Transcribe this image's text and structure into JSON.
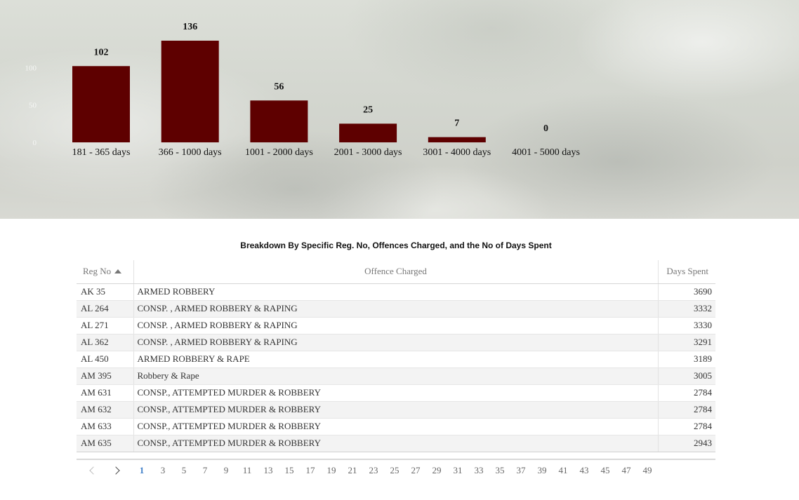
{
  "chart_data": {
    "type": "bar",
    "categories": [
      "181 - 365 days",
      "366 - 1000 days",
      "1001 - 2000 days",
      "2001 - 3000 days",
      "3001 - 4000 days",
      "4001 - 5000 days"
    ],
    "values": [
      102,
      136,
      56,
      25,
      7,
      0
    ],
    "data_labels": [
      "102",
      "136",
      "56",
      "25",
      "7",
      "0"
    ],
    "ylim": [
      0,
      136
    ],
    "y_ticks": [
      "0",
      "50",
      "100"
    ],
    "bar_color": "#5e0000",
    "grid": false,
    "legend": false
  },
  "table": {
    "title": "Breakdown By Specific Reg. No, Offences Charged, and the No of Days Spent",
    "headers": {
      "reg_no": "Reg No",
      "offence": "Offence Charged",
      "days": "Days Spent"
    },
    "sort": "Reg No ascending",
    "rows": [
      [
        "AK 35",
        "ARMED ROBBERY",
        "3690"
      ],
      [
        "AL 264",
        "CONSP. , ARMED ROBBERY & RAPING",
        "3332"
      ],
      [
        "AL 271",
        "CONSP. , ARMED ROBBERY & RAPING",
        "3330"
      ],
      [
        "AL 362",
        "CONSP. , ARMED ROBBERY & RAPING",
        "3291"
      ],
      [
        "AL 450",
        "ARMED ROBBERY & RAPE",
        "3189"
      ],
      [
        "AM 395",
        "Robbery & Rape",
        "3005"
      ],
      [
        "AM 631",
        "CONSP., ATTEMPTED MURDER & ROBBERY",
        "2784"
      ],
      [
        "AM 632",
        "CONSP., ATTEMPTED MURDER & ROBBERY",
        "2784"
      ],
      [
        "AM 633",
        "CONSP., ATTEMPTED MURDER & ROBBERY",
        "2784"
      ],
      [
        "AM 635",
        "CONSP., ATTEMPTED MURDER & ROBBERY",
        "2943"
      ]
    ]
  },
  "pager": {
    "prev_icon": "chevron-left-icon",
    "next_icon": "chevron-right-icon",
    "pages": [
      "1",
      "3",
      "5",
      "7",
      "9",
      "11",
      "13",
      "15",
      "17",
      "19",
      "21",
      "23",
      "25",
      "27",
      "29",
      "31",
      "33",
      "35",
      "37",
      "39",
      "41",
      "43",
      "45",
      "47",
      "49"
    ],
    "current": "1",
    "active_color": "#3f7fc9"
  }
}
